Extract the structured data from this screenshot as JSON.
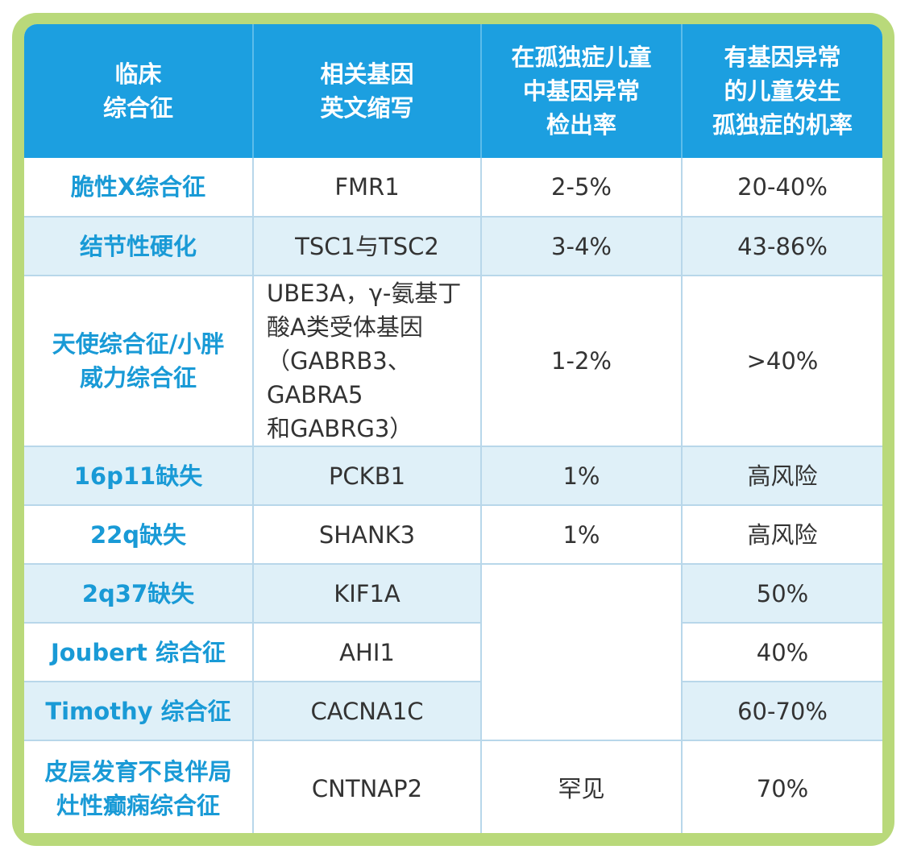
{
  "table": {
    "headers": [
      [
        "临床",
        "综合征"
      ],
      [
        "相关基因",
        "英文缩写"
      ],
      [
        "在孤独症儿童",
        "中基因异常",
        "检出率"
      ],
      [
        "有基因异常",
        "的儿童发生",
        "孤独症的机率"
      ]
    ],
    "rows": [
      {
        "syndrome": [
          "脆性X综合征"
        ],
        "gene": [
          "FMR1"
        ],
        "detection": "2-5%",
        "probability": "20-40%"
      },
      {
        "syndrome": [
          "结节性硬化"
        ],
        "gene": [
          "TSC1与TSC2"
        ],
        "detection": "3-4%",
        "probability": "43-86%"
      },
      {
        "syndrome": [
          "天使综合征/小胖",
          "威力综合征"
        ],
        "gene": [
          "UBE3A，γ-氨基丁",
          "酸A类受体基因",
          "（GABRB3、GABRA5",
          "和GABRG3）"
        ],
        "detection": "1-2%",
        "probability": ">40%"
      },
      {
        "syndrome": [
          "16p11缺失"
        ],
        "gene": [
          "PCKB1"
        ],
        "detection": "1%",
        "probability": "高风险"
      },
      {
        "syndrome": [
          "22q缺失"
        ],
        "gene": [
          "SHANK3"
        ],
        "detection": "1%",
        "probability": "高风险"
      },
      {
        "syndrome": [
          "2q37缺失"
        ],
        "gene": [
          "KIF1A"
        ],
        "detection": "",
        "probability": "50%"
      },
      {
        "syndrome": [
          "Joubert 综合征"
        ],
        "gene": [
          "AHI1"
        ],
        "detection": "",
        "probability": "40%"
      },
      {
        "syndrome": [
          "Timothy 综合征"
        ],
        "gene": [
          "CACNA1C"
        ],
        "detection": "",
        "probability": "60-70%"
      },
      {
        "syndrome": [
          "皮层发育不良伴局",
          "灶性癫痫综合征"
        ],
        "gene": [
          "CNTNAP2"
        ],
        "detection": "罕见",
        "probability": "70%"
      }
    ]
  },
  "colors": {
    "header_bg": "#1c9fe0",
    "row_alt_bg": "#dff0f8",
    "syndrome_text": "#199ad6",
    "frame": "#b9d97a"
  }
}
